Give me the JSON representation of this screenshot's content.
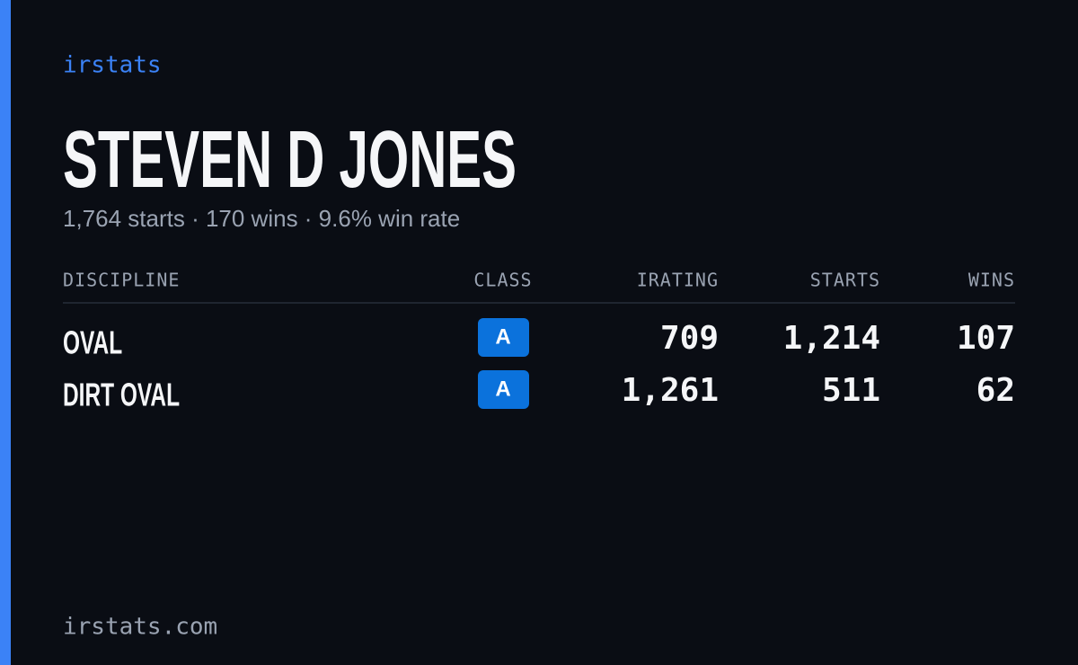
{
  "brand": "irstats",
  "driver": {
    "name": "STEVEN D JONES",
    "summary": "1,764 starts · 170 wins · 9.6% win rate"
  },
  "table": {
    "headers": [
      "DISCIPLINE",
      "CLASS",
      "IRATING",
      "STARTS",
      "WINS"
    ],
    "rows": [
      [
        "OVAL",
        "A",
        "709",
        "1,214",
        "107"
      ],
      [
        "DIRT OVAL",
        "A",
        "1,261",
        "511",
        "62"
      ]
    ]
  },
  "footer": "irstats.com"
}
